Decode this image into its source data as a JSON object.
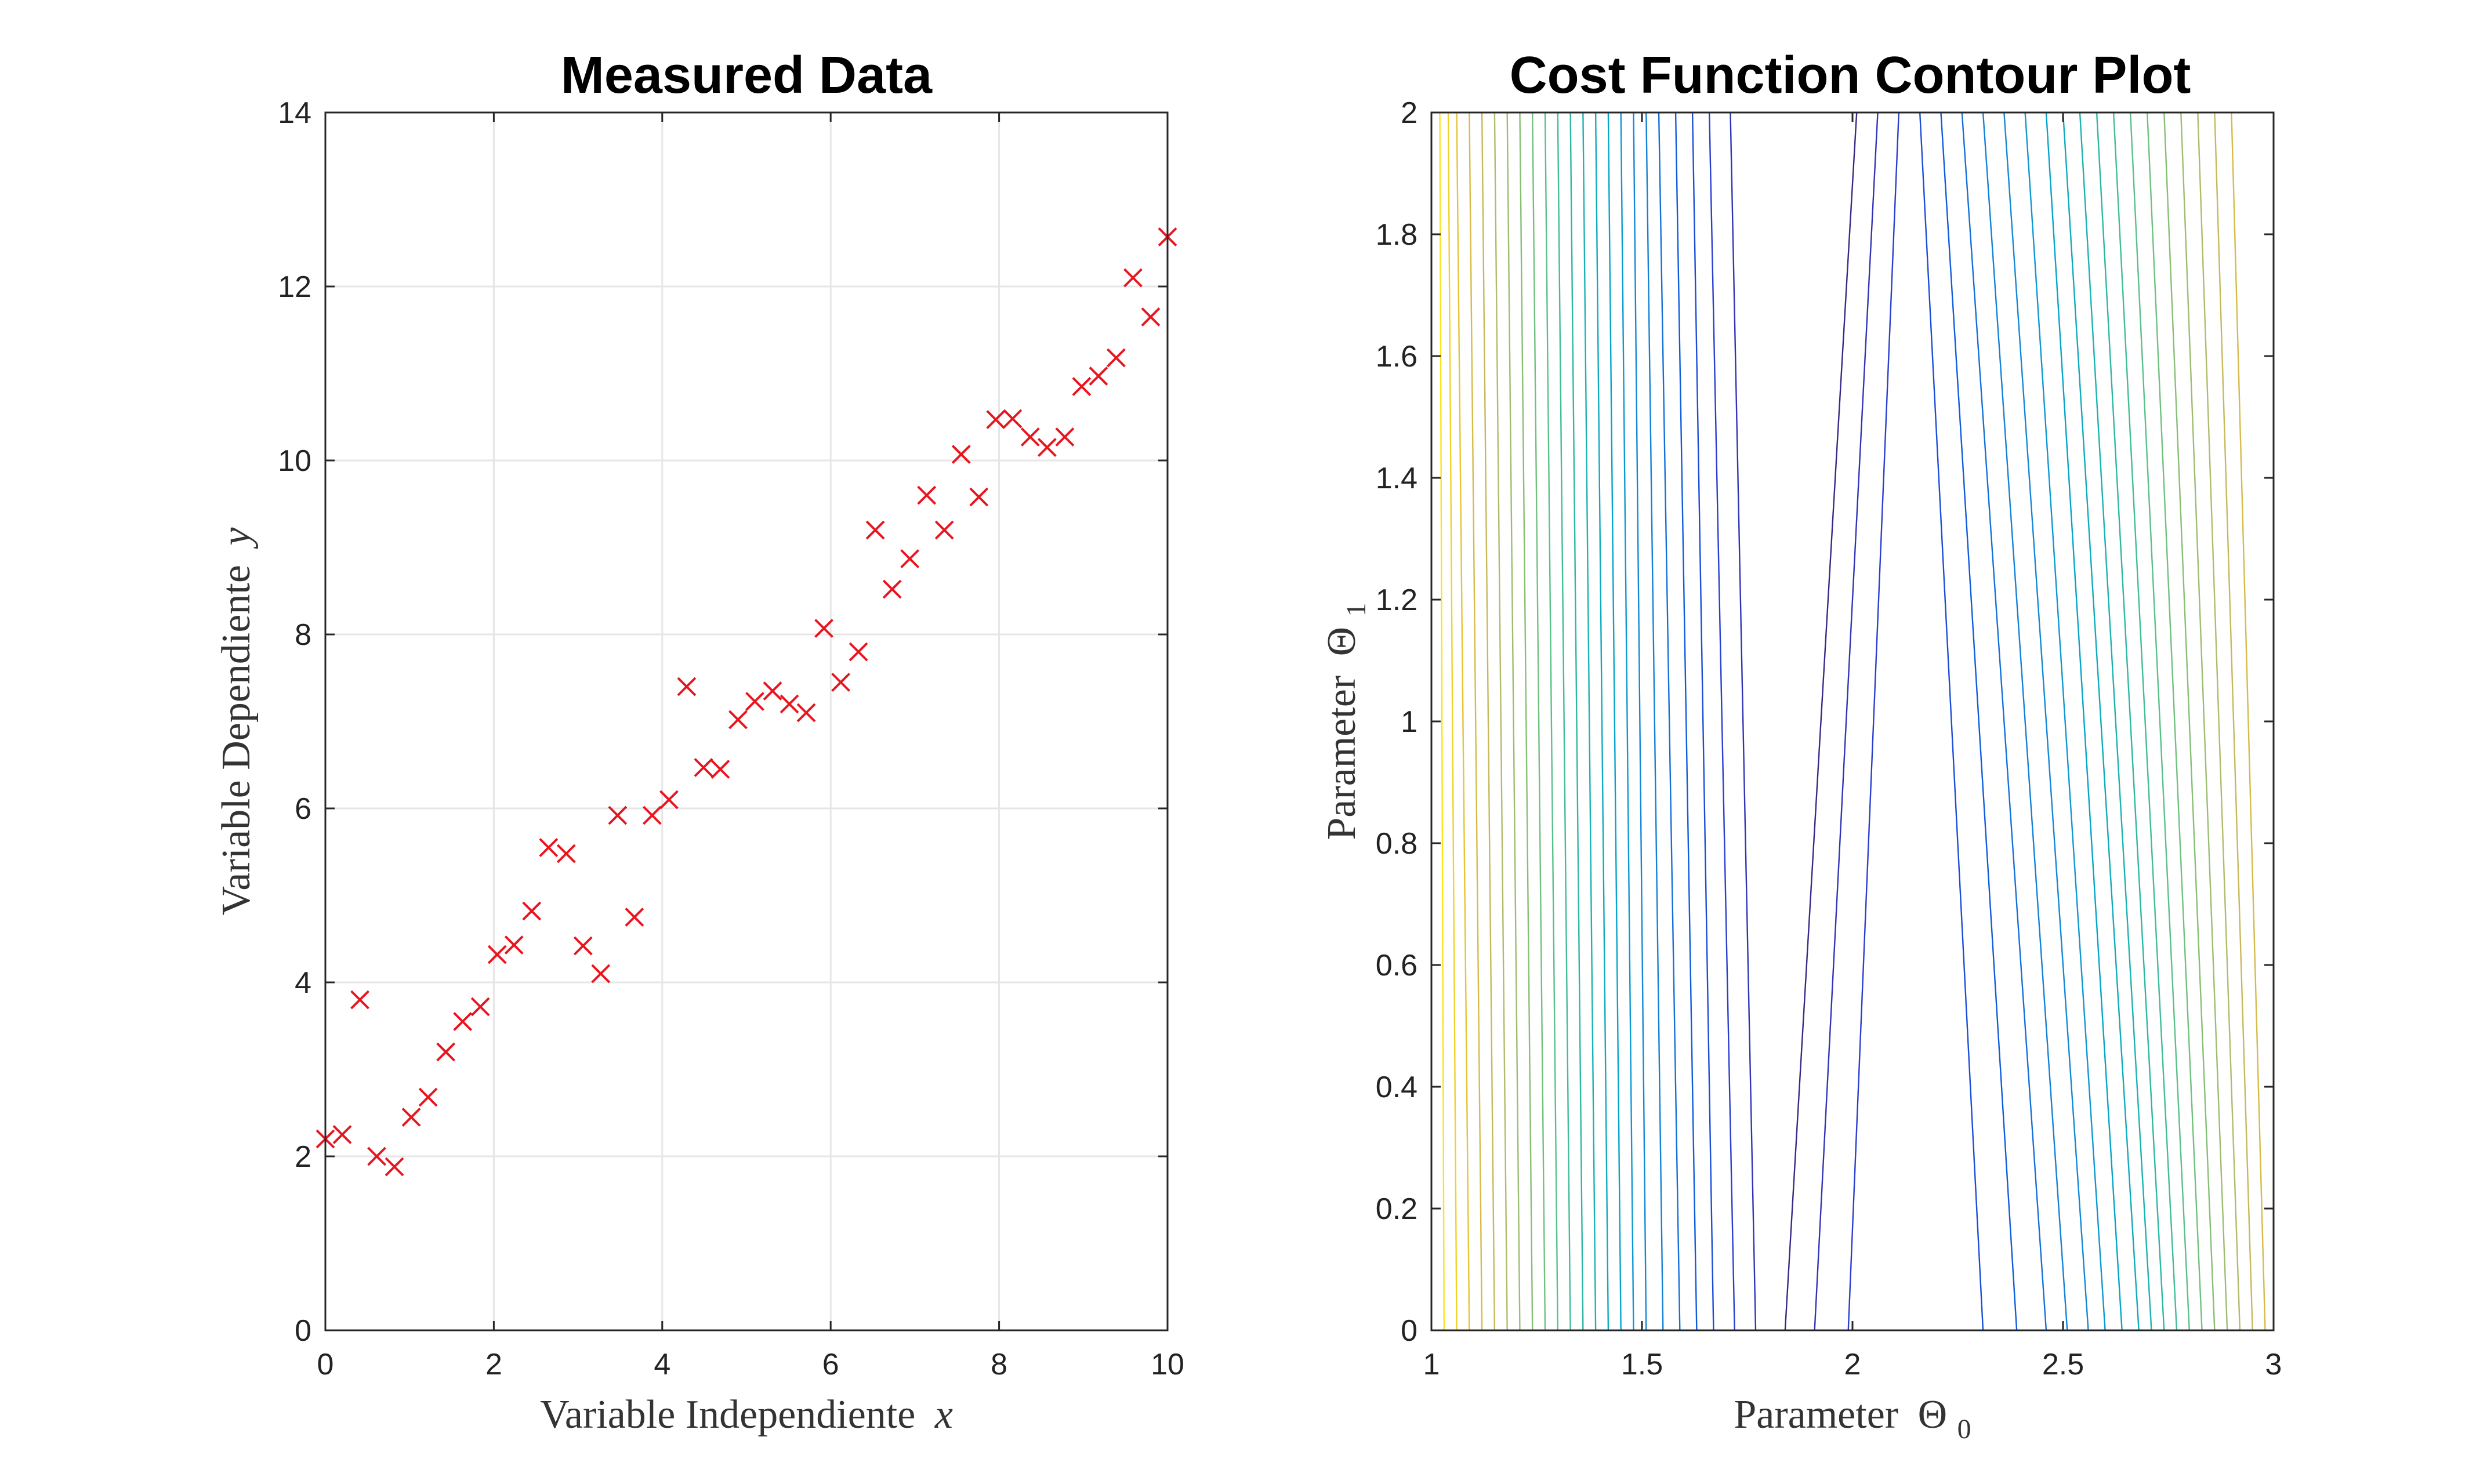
{
  "chart_data": [
    {
      "type": "scatter",
      "title": "Measured Data",
      "xlabel": "Variable Independiente",
      "xlabel_symbol": "x",
      "ylabel": "Variable Dependiente",
      "ylabel_symbol": "y",
      "xlim": [
        0,
        10
      ],
      "ylim": [
        0,
        14
      ],
      "xticks": [
        0,
        2,
        4,
        6,
        8,
        10
      ],
      "yticks": [
        0,
        2,
        4,
        6,
        8,
        10,
        12,
        14
      ],
      "grid": true,
      "marker": "x",
      "marker_color": "#e8141e",
      "x": [
        0.0,
        0.2,
        0.41,
        0.61,
        0.82,
        1.02,
        1.22,
        1.43,
        1.63,
        1.84,
        2.04,
        2.24,
        2.45,
        2.65,
        2.86,
        3.06,
        3.27,
        3.47,
        3.67,
        3.88,
        4.08,
        4.29,
        4.49,
        4.69,
        4.9,
        5.1,
        5.31,
        5.51,
        5.71,
        5.92,
        6.12,
        6.33,
        6.53,
        6.73,
        6.94,
        7.14,
        7.35,
        7.55,
        7.76,
        7.96,
        8.16,
        8.37,
        8.57,
        8.78,
        8.98,
        9.18,
        9.39,
        9.59,
        9.8,
        10.0
      ],
      "y": [
        2.2,
        2.25,
        3.8,
        2.0,
        1.88,
        2.45,
        2.68,
        3.2,
        3.55,
        3.72,
        4.32,
        4.43,
        4.82,
        5.55,
        5.48,
        4.42,
        4.1,
        5.92,
        4.75,
        5.92,
        6.1,
        7.4,
        6.47,
        6.45,
        7.02,
        7.23,
        7.35,
        7.2,
        7.1,
        8.07,
        7.45,
        7.8,
        9.2,
        8.52,
        8.87,
        9.6,
        9.2,
        10.07,
        9.58,
        10.47,
        10.48,
        10.27,
        10.15,
        10.27,
        10.85,
        10.97,
        11.18,
        12.1,
        11.65,
        12.57
      ]
    },
    {
      "type": "contour",
      "title": "Cost Function Contour Plot",
      "xlabel": "Parameter",
      "xlabel_symbol": "Θ",
      "xlabel_subscript": "0",
      "ylabel": "Parameter",
      "ylabel_symbol": "Θ",
      "ylabel_subscript": "1",
      "xlim": [
        1,
        3
      ],
      "ylim": [
        0,
        2
      ],
      "xticks": [
        1,
        1.5,
        2,
        2.5,
        3
      ],
      "xtick_labels": [
        "1",
        "1.5",
        "2",
        "2.5",
        "3"
      ],
      "yticks": [
        0,
        0.2,
        0.4,
        0.6,
        0.8,
        1,
        1.2,
        1.4,
        1.6,
        1.8,
        2
      ],
      "ytick_labels": [
        "0",
        "0.2",
        "0.4",
        "0.6",
        "0.8",
        "1",
        "1.2",
        "1.4",
        "1.6",
        "1.8",
        "2"
      ],
      "grid": false,
      "colormap": "parula",
      "colormap_stops": [
        "#352a87",
        "#0f5cdd",
        "#1481d6",
        "#06a4ca",
        "#2eb7a4",
        "#87bf77",
        "#d1bb59",
        "#fec832",
        "#f9fb0e"
      ],
      "contour_lines_bottom": [
        1.03,
        1.06,
        1.09,
        1.12,
        1.15,
        1.18,
        1.21,
        1.24,
        1.27,
        1.3,
        1.33,
        1.36,
        1.39,
        1.42,
        1.45,
        1.48,
        1.51,
        1.55,
        1.59,
        1.63,
        1.67,
        1.72,
        1.77,
        1.84,
        1.91,
        1.99,
        2.31,
        2.39,
        2.46,
        2.51,
        2.56,
        2.6,
        2.64,
        2.68,
        2.71,
        2.74,
        2.77,
        2.8,
        2.83,
        2.86,
        2.89,
        2.92,
        2.95,
        2.98
      ],
      "contour_lines_top": [
        1.02,
        1.04,
        1.06,
        1.09,
        1.12,
        1.15,
        1.18,
        1.21,
        1.24,
        1.27,
        1.3,
        1.33,
        1.36,
        1.39,
        1.42,
        1.45,
        1.48,
        1.51,
        1.54,
        1.58,
        1.62,
        1.66,
        1.71,
        2.01,
        2.06,
        2.11,
        2.16,
        2.21,
        2.26,
        2.31,
        2.36,
        2.41,
        2.46,
        2.5,
        2.54,
        2.58,
        2.62,
        2.66,
        2.7,
        2.74,
        2.78,
        2.82,
        2.86,
        2.9
      ],
      "contour_colors": [
        "#fbe31e",
        "#f0d229",
        "#e5c436",
        "#d6bb4a",
        "#c6b95c",
        "#b2bb6b",
        "#9dbd72",
        "#87bf77",
        "#71c07f",
        "#5ac08b",
        "#42bc99",
        "#2eb7a4",
        "#1cb2b2",
        "#10aabe",
        "#06a4ca",
        "#0e98d2",
        "#1488d6",
        "#1481d6",
        "#1470d8",
        "#0f5cdd",
        "#1b4dd8",
        "#2a3fce",
        "#3135b5",
        "#352a87",
        "#3135b5",
        "#2a3fce",
        "#1b4dd8",
        "#0f5cdd",
        "#1470d8",
        "#1481d6",
        "#1488d6",
        "#0e98d2",
        "#06a4ca",
        "#10aabe",
        "#1cb2b2",
        "#2eb7a4",
        "#42bc99",
        "#5ac08b",
        "#71c07f",
        "#87bf77",
        "#9dbd72",
        "#b2bb6b",
        "#c6b95c",
        "#d6bb4a"
      ]
    }
  ]
}
